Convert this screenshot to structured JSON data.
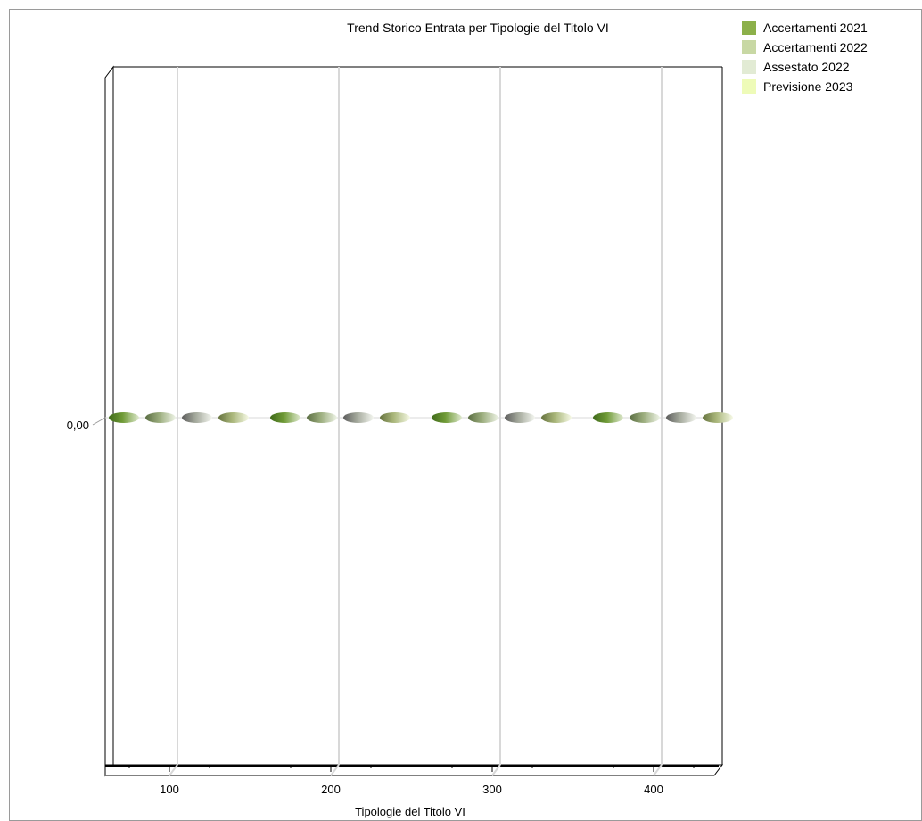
{
  "chart_data": {
    "type": "bar",
    "title": "Trend Storico Entrata per Tipologie del Titolo VI",
    "xlabel": "Tipologie del Titolo VI",
    "ylabel": "",
    "categories": [
      "100",
      "200",
      "300",
      "400"
    ],
    "y_tick_label": "0,00",
    "series": [
      {
        "name": "Accertamenti 2021",
        "color": "#8cb04a",
        "values": [
          0,
          0,
          0,
          0
        ]
      },
      {
        "name": "Accertamenti 2022",
        "color": "#c8d8a4",
        "values": [
          0,
          0,
          0,
          0
        ]
      },
      {
        "name": "Assestato 2022",
        "color": "#e2ebd4",
        "values": [
          0,
          0,
          0,
          0
        ]
      },
      {
        "name": "Previsione 2023",
        "color": "#eefbb8",
        "values": [
          0,
          0,
          0,
          0
        ]
      }
    ],
    "grid": true,
    "legend_position": "top-right",
    "bar_shape": "cylinder-3d",
    "orientation": "horizontal"
  }
}
